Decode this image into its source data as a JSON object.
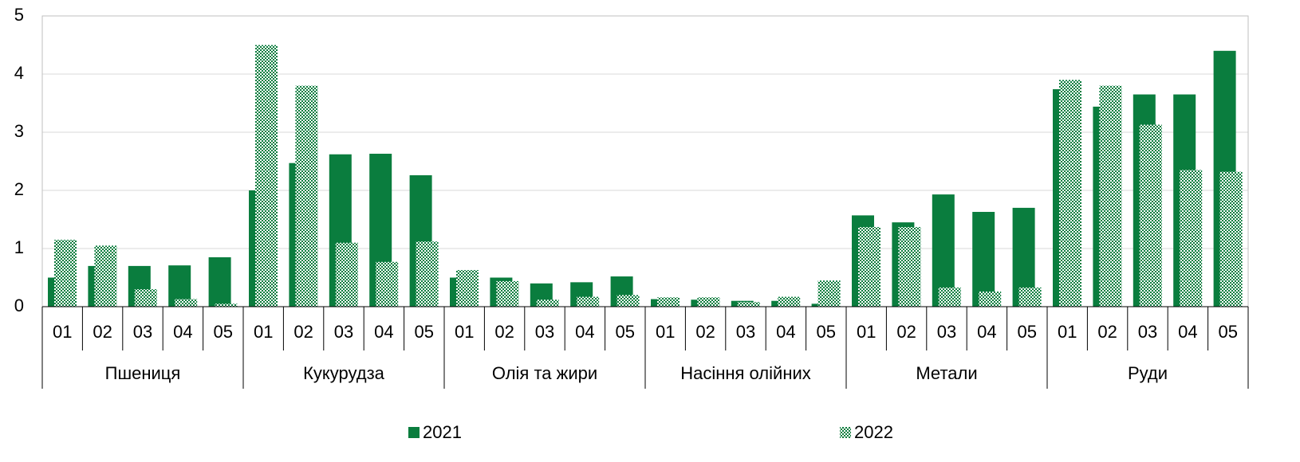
{
  "chart_data": {
    "type": "bar",
    "categories": [
      "01",
      "02",
      "03",
      "04",
      "05",
      "01",
      "02",
      "03",
      "04",
      "05",
      "01",
      "02",
      "03",
      "04",
      "05",
      "01",
      "02",
      "03",
      "04",
      "05",
      "01",
      "02",
      "03",
      "04",
      "05",
      "01",
      "02",
      "03",
      "04",
      "05"
    ],
    "groups": [
      "Пшениця",
      "Кукурудза",
      "Олія та жири",
      "Насіння олійних",
      "Метали",
      "Руди"
    ],
    "series": [
      {
        "name": "2021",
        "color": "#0a7d3e",
        "fill_pattern": "solid",
        "values": [
          0.5,
          0.7,
          0.7,
          0.71,
          0.85,
          2.0,
          2.47,
          2.62,
          2.63,
          2.26,
          0.5,
          0.5,
          0.4,
          0.42,
          0.52,
          0.13,
          0.12,
          0.1,
          0.1,
          0.05,
          1.57,
          1.45,
          1.93,
          1.63,
          1.7,
          3.74,
          3.44,
          3.65,
          3.65,
          4.4
        ]
      },
      {
        "name": "2022",
        "color": "#0a7d3e",
        "fill_pattern": "checker",
        "values": [
          1.15,
          1.05,
          0.3,
          0.13,
          0.05,
          4.5,
          3.8,
          1.1,
          0.77,
          1.12,
          0.63,
          0.44,
          0.12,
          0.17,
          0.2,
          0.16,
          0.16,
          0.08,
          0.17,
          0.45,
          1.37,
          1.37,
          0.33,
          0.26,
          0.33,
          3.9,
          3.8,
          3.13,
          2.35,
          2.32
        ]
      }
    ],
    "ylim": [
      0,
      5
    ],
    "yticks": [
      0,
      1,
      2,
      3,
      4,
      5
    ],
    "grid": true,
    "legend": "bottom"
  }
}
